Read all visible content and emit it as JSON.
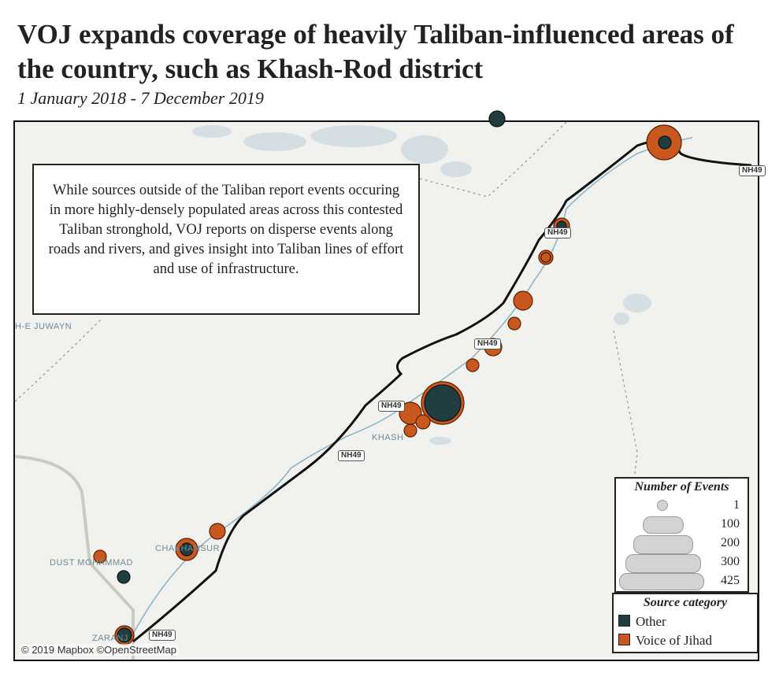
{
  "header": {
    "title": "VOJ expands coverage of heavily Taliban-influenced areas of the country, such as Khash-Rod district",
    "subtitle": "1 January 2018 - 7 December 2019"
  },
  "note": "While sources outside of the Taliban report events occuring in more highly-densely populated areas across this contested Taliban stronghold, VOJ reports on disperse events along roads and rivers, and gives insight into Taliban lines of effort and use of infrastructure.",
  "places": {
    "juwayn": "H-E JUWAYN",
    "khash": "KHASH",
    "chakhansur": "CHAKHANSUR",
    "dust_mohammad": "DUST MOHAMMAD",
    "zaranj": "ZARANJ"
  },
  "shields": [
    "NH49",
    "NH49",
    "NH49",
    "NH49",
    "NH49",
    "NH49"
  ],
  "credit": "© 2019 Mapbox ©OpenStreetMap",
  "colors": {
    "other": "#203d40",
    "voj": "#c9581f",
    "road": "#111111",
    "river": "#8fb4c8"
  },
  "legend": {
    "size_title": "Number of Events",
    "size_levels": [
      "1",
      "100",
      "200",
      "300",
      "425"
    ],
    "category_title": "Source category",
    "categories": [
      {
        "label": "Other",
        "color": "#203d40"
      },
      {
        "label": "Voice of Jihad",
        "color": "#c9581f"
      }
    ]
  }
}
